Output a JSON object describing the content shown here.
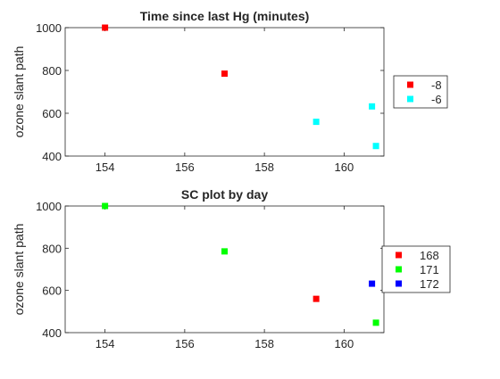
{
  "chart_data": [
    {
      "type": "scatter",
      "title": "Time since last Hg (minutes)",
      "xlabel": "",
      "ylabel": "ozone slant path",
      "xlim": [
        153,
        161
      ],
      "ylim": [
        400,
        1000
      ],
      "xticks": [
        "154",
        "156",
        "158",
        "160"
      ],
      "yticks": [
        "400",
        "600",
        "800",
        "1000"
      ],
      "legend": "right",
      "grid": false,
      "series": [
        {
          "name": "-8",
          "color": "#ff0000",
          "points": [
            [
              154.0,
              1000
            ],
            [
              157.0,
              785
            ]
          ]
        },
        {
          "name": "-6",
          "color": "#00ffff",
          "points": [
            [
              159.3,
              560
            ],
            [
              160.7,
              632
            ],
            [
              160.8,
              447
            ]
          ]
        }
      ]
    },
    {
      "type": "scatter",
      "title": "SC plot by day",
      "xlabel": "",
      "ylabel": "ozone slant path",
      "xlim": [
        153,
        161
      ],
      "ylim": [
        400,
        1000
      ],
      "xticks": [
        "154",
        "156",
        "158",
        "160"
      ],
      "yticks": [
        "400",
        "600",
        "800",
        "1000"
      ],
      "legend": "right",
      "grid": false,
      "series": [
        {
          "name": "168",
          "color": "#ff0000",
          "points": [
            [
              159.3,
              560
            ]
          ]
        },
        {
          "name": "171",
          "color": "#00ff00",
          "points": [
            [
              154.0,
              1000
            ],
            [
              157.0,
              785
            ],
            [
              160.8,
              447
            ]
          ]
        },
        {
          "name": "172",
          "color": "#0000ff",
          "points": [
            [
              160.7,
              632
            ]
          ]
        }
      ]
    }
  ]
}
